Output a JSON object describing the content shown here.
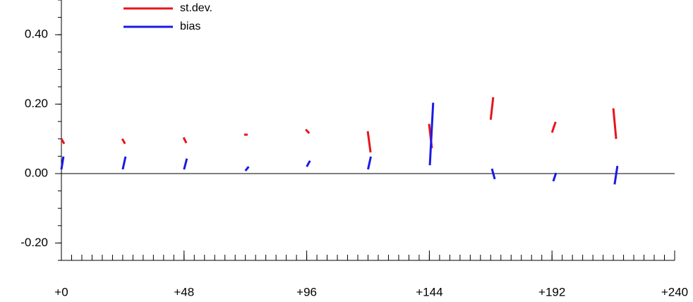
{
  "chart_data": {
    "type": "line",
    "xlim": [
      0,
      240
    ],
    "ylim": [
      -0.25,
      0.5
    ],
    "xticks": [
      {
        "value": 0,
        "label": "+0"
      },
      {
        "value": 48,
        "label": "+48"
      },
      {
        "value": 96,
        "label": "+96"
      },
      {
        "value": 144,
        "label": "+144"
      },
      {
        "value": 192,
        "label": "+192"
      },
      {
        "value": 240,
        "label": "+240"
      }
    ],
    "yticks": [
      {
        "value": -0.2,
        "label": "-0.20"
      },
      {
        "value": 0,
        "label": "0.00"
      },
      {
        "value": 0.2,
        "label": "0.20"
      },
      {
        "value": 0.4,
        "label": "0.40"
      }
    ],
    "x_minor_step": 4,
    "y_minor_step": 0.05,
    "zero_line": true,
    "legend": "top-left",
    "series": [
      {
        "name": "st.dev.",
        "color": "#e8141b",
        "x": [
          0,
          1.1,
          null,
          23.8,
          24.9,
          null,
          47.8,
          48.9,
          null,
          71.5,
          72.9,
          null,
          95.6,
          97,
          null,
          119.9,
          121,
          null,
          143.9,
          145,
          null,
          168,
          169,
          null,
          192,
          193.4,
          null,
          216,
          217.1
        ],
        "values": [
          0.1,
          0.086,
          null,
          0.1,
          0.086,
          null,
          0.104,
          0.088,
          null,
          0.112,
          0.112,
          null,
          0.127,
          0.116,
          null,
          0.122,
          0.061,
          null,
          0.143,
          0.073,
          null,
          0.155,
          0.22,
          null,
          0.118,
          0.149,
          null,
          0.188,
          0.1
        ]
      },
      {
        "name": "bias",
        "color": "#1a1ae6",
        "x": [
          0,
          0.8,
          null,
          24,
          25.1,
          null,
          48,
          49.1,
          null,
          72,
          73.3,
          null,
          96,
          97.3,
          null,
          120,
          121.1,
          null,
          144.2,
          145.5,
          null,
          168.5,
          169.6,
          null,
          192.5,
          193.6,
          null,
          216.5,
          217.6
        ],
        "values": [
          0.012,
          0.049,
          null,
          0.012,
          0.049,
          null,
          0.012,
          0.043,
          null,
          0.008,
          0.02,
          null,
          0.02,
          0.037,
          null,
          0.012,
          0.049,
          null,
          0.024,
          0.204,
          null,
          0.014,
          -0.016,
          null,
          -0.022,
          0.002,
          null,
          -0.031,
          0.022
        ]
      }
    ]
  }
}
